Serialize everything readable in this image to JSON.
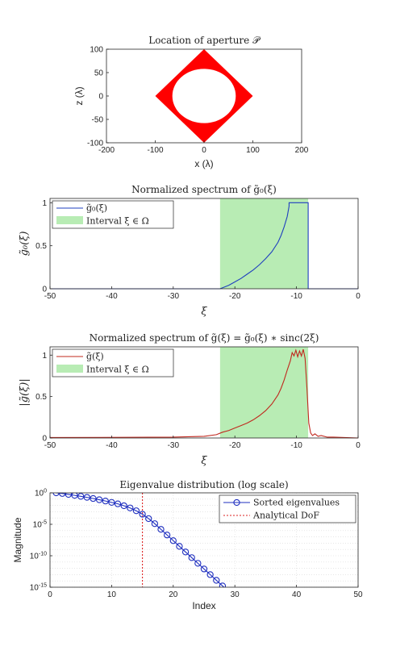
{
  "chart_data": [
    {
      "type": "scatter",
      "title": "Location of aperture 𝒫",
      "xlabel": "x (λ)",
      "ylabel": "z (λ)",
      "xlim": [
        -200,
        200
      ],
      "ylim": [
        -100,
        100
      ],
      "xticks": [
        -200,
        -100,
        0,
        100,
        200
      ],
      "yticks": [
        -100,
        -50,
        0,
        50,
        100
      ],
      "aperture": {
        "outer_diamond": [
          [
            0,
            100
          ],
          [
            100,
            0
          ],
          [
            0,
            -100
          ],
          [
            -100,
            0
          ]
        ],
        "inner_circle": {
          "center": [
            0,
            0
          ],
          "radius": 58
        },
        "color": "#ff0000"
      }
    },
    {
      "type": "area",
      "title": "Normalized spectrum of g̃₀(ξ)",
      "xlabel": "ξ",
      "ylabel": "g̃₀(ξ)",
      "xlim": [
        -50,
        0
      ],
      "ylim": [
        0,
        1.05
      ],
      "xticks": [
        -50,
        -40,
        -30,
        -20,
        -10,
        0
      ],
      "yticks": [
        0,
        0.5,
        1
      ],
      "interval": [
        -22.4,
        -8.1
      ],
      "series": [
        {
          "name": "g̃₀(ξ)",
          "color": "#1f3fbf",
          "x": [
            -50,
            -22.4,
            -21,
            -20,
            -19,
            -18,
            -17,
            -16,
            -15,
            -14,
            -13,
            -12.5,
            -12,
            -11.5,
            -11.2,
            -11.2,
            -8.1,
            -8.1,
            0
          ],
          "y": [
            0,
            0,
            0.04,
            0.08,
            0.12,
            0.17,
            0.22,
            0.28,
            0.35,
            0.43,
            0.54,
            0.62,
            0.72,
            0.84,
            0.96,
            1.0,
            1.0,
            0,
            0
          ]
        }
      ],
      "legend": [
        "g̃₀(ξ)",
        "Interval ξ ∈ Ω"
      ]
    },
    {
      "type": "area",
      "title": "Normalized spectrum of g̃(ξ) = g̃₀(ξ) ∗ sinc(2ξ)",
      "xlabel": "ξ",
      "ylabel": "|g̃(ξ)|",
      "xlim": [
        -50,
        0
      ],
      "ylim": [
        0,
        1.1
      ],
      "xticks": [
        -50,
        -40,
        -30,
        -20,
        -10,
        0
      ],
      "yticks": [
        0,
        0.5,
        1
      ],
      "interval": [
        -22.4,
        -8.1
      ],
      "series": [
        {
          "name": "g̃(ξ)",
          "color": "#c0281e",
          "x": [
            -50,
            -30,
            -25,
            -23,
            -22,
            -21,
            -20,
            -19,
            -18,
            -17,
            -16,
            -15,
            -14,
            -13,
            -12.5,
            -12,
            -11.5,
            -11,
            -10.7,
            -10.4,
            -10.1,
            -9.8,
            -9.5,
            -9.2,
            -8.9,
            -8.6,
            -8.3,
            -8.0,
            -7.7,
            -7.4,
            -7.0,
            -6.5,
            -6.0,
            -5.0,
            -4.0,
            0
          ],
          "y": [
            0.005,
            0.01,
            0.02,
            0.04,
            0.07,
            0.09,
            0.12,
            0.15,
            0.18,
            0.22,
            0.27,
            0.33,
            0.41,
            0.52,
            0.6,
            0.7,
            0.82,
            0.93,
            1.03,
            0.99,
            1.06,
            0.98,
            1.05,
            0.99,
            1.07,
            0.96,
            0.6,
            0.18,
            0.06,
            0.03,
            0.05,
            0.02,
            0.03,
            0.01,
            0.01,
            0.0
          ]
        }
      ],
      "legend": [
        "g̃(ξ)",
        "Interval ξ ∈ Ω"
      ]
    },
    {
      "type": "line",
      "title": "Eigenvalue distribution (log scale)",
      "xlabel": "Index",
      "ylabel": "Magnitude",
      "xlim": [
        0,
        50
      ],
      "ylim_log10": [
        -15,
        0
      ],
      "xticks": [
        0,
        10,
        20,
        30,
        40,
        50
      ],
      "yticks_log10": [
        0,
        -5,
        -10,
        -15
      ],
      "analytical_dof": 15,
      "series": [
        {
          "name": "Sorted eigenvalues",
          "color": "#1f2fbf",
          "x": [
            1,
            2,
            3,
            4,
            5,
            6,
            7,
            8,
            9,
            10,
            11,
            12,
            13,
            14,
            15,
            16,
            17,
            18,
            19,
            20,
            21,
            22,
            23,
            24,
            25,
            26,
            27,
            28,
            29,
            30
          ],
          "log10_y": [
            0,
            -0.1,
            -0.25,
            -0.4,
            -0.55,
            -0.72,
            -0.9,
            -1.1,
            -1.3,
            -1.52,
            -1.75,
            -2.05,
            -2.4,
            -2.85,
            -3.4,
            -4.1,
            -4.9,
            -5.8,
            -6.7,
            -7.6,
            -8.5,
            -9.4,
            -10.3,
            -11.2,
            -12.1,
            -13.0,
            -13.9,
            -14.8,
            -15.7,
            -16.6
          ]
        }
      ],
      "legend": [
        "Sorted eigenvalues",
        "Analytical DoF"
      ]
    }
  ]
}
